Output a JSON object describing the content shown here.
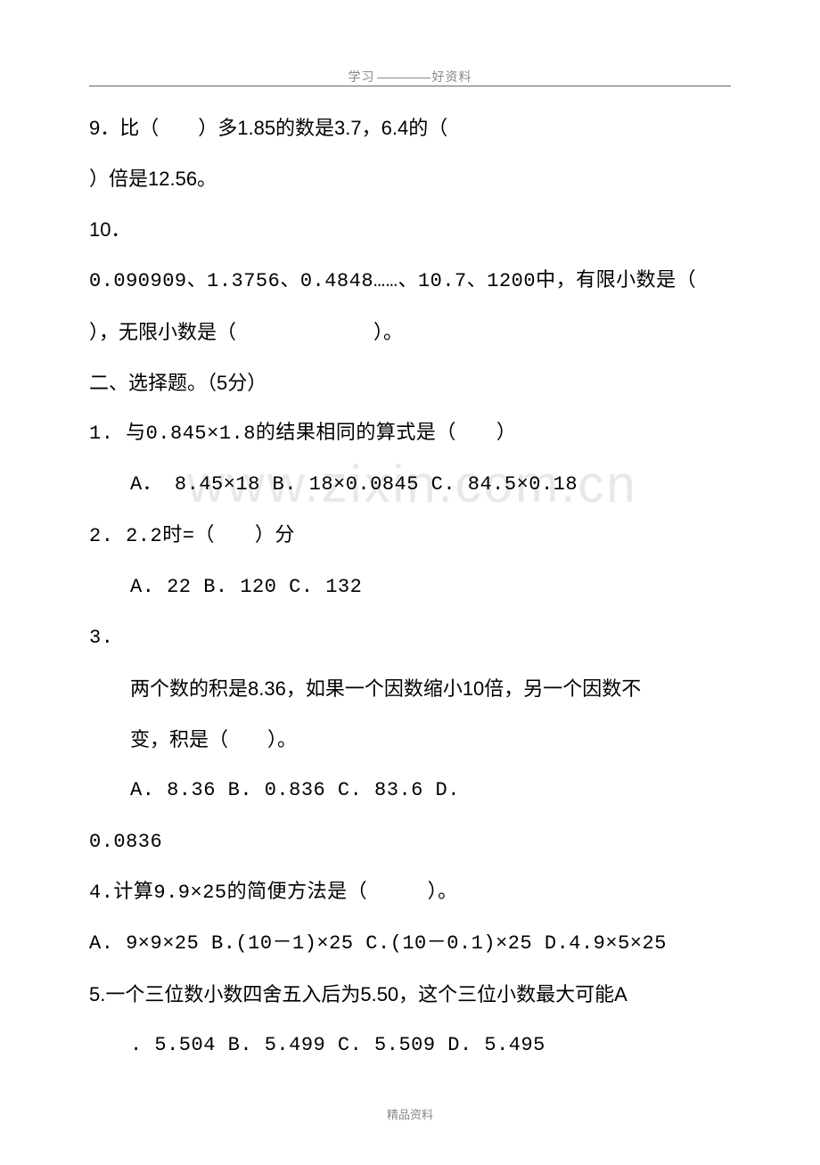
{
  "page": {
    "header_left": "学习",
    "header_right": "好资料",
    "footer": "精品资料",
    "watermark": "www.zixin.com.cn"
  },
  "lines": {
    "q9a": "9．比（　　）多1.85的数是3.7，6.4的（　　",
    "q9b": "）倍是12.56。",
    "q10a": "10．",
    "q10b": "0.090909、1.3756、0.4848……、10.7、1200中，有限小数是（　　",
    "q10c": "），无限小数是（　　　　　　　）。",
    "sec2": "二、选择题。（5分）",
    "q1": "1.  与0.845×1.8的结果相同的算式是（　　）",
    "q1opts": "A．  8.45×18        B.  18×0.0845      C.  84.5×0.18",
    "q2": "2.   2.2时=（　　）分",
    "q2opts": "A.  22             B.  120           C.  132",
    "q3": "3.",
    "q3a": "两个数的积是8.36，如果一个因数缩小10倍，另一个因数不",
    "q3b": "变，积是（　　）。",
    "q3opts": "A.   8.36         B.   0.836        C.  83.6        D.",
    "q3d": "0.0836",
    "q4": "4.计算9.9×25的简便方法是（　　　）。",
    "q4opts": "A.  9×9×25  B.(10－1)×25  C.(10－0.1)×25  D.4.9×5×25",
    "q5": "5.一个三位数小数四舍五入后为5.50，这个三位小数最大可能A",
    "q5opts": ".    5.504     B.   5.499     C.   5.509      D.   5.495"
  },
  "style": {
    "body_font_size": 22,
    "body_color": "#000000",
    "header_color": "#888888",
    "watermark_color": "#e8e8e8",
    "background": "#ffffff"
  }
}
